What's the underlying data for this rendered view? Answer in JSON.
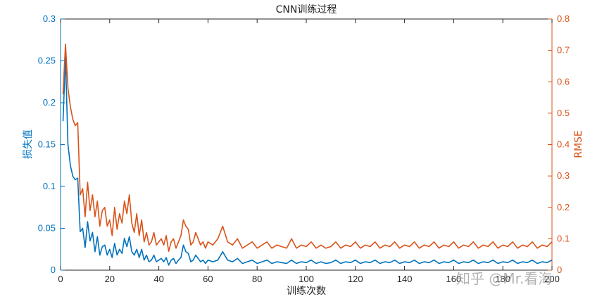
{
  "watermark": "知乎 @Mr.看海",
  "chart_data": {
    "type": "line",
    "title": "CNN训练过程",
    "xlabel": "训练次数",
    "ylabel_left": "损失值",
    "ylabel_right": "RMSE",
    "xlim": [
      0,
      200
    ],
    "ylim_left": [
      0,
      0.3
    ],
    "ylim_right": [
      0,
      0.8
    ],
    "xticks": [
      0,
      20,
      40,
      60,
      80,
      100,
      120,
      140,
      160,
      180,
      200
    ],
    "yticks_left": [
      0,
      0.05,
      0.1,
      0.15,
      0.2,
      0.25,
      0.3
    ],
    "yticks_right": [
      0,
      0.1,
      0.2,
      0.3,
      0.4,
      0.5,
      0.6,
      0.7,
      0.8
    ],
    "grid": false,
    "series": [
      {
        "axis": "left",
        "color": "#0072BD",
        "points": [
          [
            1,
            0.178
          ],
          [
            2,
            0.255
          ],
          [
            3,
            0.15
          ],
          [
            4,
            0.125
          ],
          [
            5,
            0.112
          ],
          [
            6,
            0.108
          ],
          [
            7,
            0.11
          ],
          [
            8,
            0.046
          ],
          [
            9,
            0.05
          ],
          [
            10,
            0.027
          ],
          [
            11,
            0.058
          ],
          [
            12,
            0.035
          ],
          [
            13,
            0.045
          ],
          [
            14,
            0.022
          ],
          [
            15,
            0.04
          ],
          [
            16,
            0.018
          ],
          [
            17,
            0.028
          ],
          [
            18,
            0.03
          ],
          [
            19,
            0.018
          ],
          [
            20,
            0.025
          ],
          [
            21,
            0.015
          ],
          [
            22,
            0.032
          ],
          [
            23,
            0.018
          ],
          [
            24,
            0.025
          ],
          [
            25,
            0.02
          ],
          [
            26,
            0.038
          ],
          [
            27,
            0.028
          ],
          [
            28,
            0.04
          ],
          [
            29,
            0.022
          ],
          [
            30,
            0.018
          ],
          [
            31,
            0.025
          ],
          [
            32,
            0.015
          ],
          [
            33,
            0.025
          ],
          [
            34,
            0.012
          ],
          [
            35,
            0.018
          ],
          [
            36,
            0.01
          ],
          [
            37,
            0.012
          ],
          [
            38,
            0.018
          ],
          [
            39,
            0.01
          ],
          [
            40,
            0.012
          ],
          [
            41,
            0.014
          ],
          [
            42,
            0.01
          ],
          [
            43,
            0.015
          ],
          [
            44,
            0.006
          ],
          [
            45,
            0.012
          ],
          [
            46,
            0.014
          ],
          [
            47,
            0.008
          ],
          [
            48,
            0.012
          ],
          [
            49,
            0.015
          ],
          [
            50,
            0.03
          ],
          [
            51,
            0.022
          ],
          [
            52,
            0.02
          ],
          [
            53,
            0.01
          ],
          [
            54,
            0.012
          ],
          [
            55,
            0.018
          ],
          [
            56,
            0.014
          ],
          [
            57,
            0.01
          ],
          [
            58,
            0.012
          ],
          [
            59,
            0.008
          ],
          [
            60,
            0.012
          ],
          [
            62,
            0.01
          ],
          [
            64,
            0.012
          ],
          [
            66,
            0.022
          ],
          [
            68,
            0.012
          ],
          [
            70,
            0.01
          ],
          [
            72,
            0.014
          ],
          [
            74,
            0.008
          ],
          [
            76,
            0.01
          ],
          [
            78,
            0.012
          ],
          [
            80,
            0.008
          ],
          [
            82,
            0.01
          ],
          [
            84,
            0.012
          ],
          [
            86,
            0.008
          ],
          [
            88,
            0.01
          ],
          [
            90,
            0.009
          ],
          [
            92,
            0.008
          ],
          [
            94,
            0.012
          ],
          [
            96,
            0.008
          ],
          [
            98,
            0.01
          ],
          [
            100,
            0.009
          ],
          [
            102,
            0.012
          ],
          [
            104,
            0.008
          ],
          [
            106,
            0.01
          ],
          [
            108,
            0.008
          ],
          [
            110,
            0.009
          ],
          [
            112,
            0.012
          ],
          [
            114,
            0.008
          ],
          [
            116,
            0.01
          ],
          [
            118,
            0.009
          ],
          [
            120,
            0.012
          ],
          [
            122,
            0.008
          ],
          [
            124,
            0.01
          ],
          [
            126,
            0.009
          ],
          [
            128,
            0.012
          ],
          [
            130,
            0.008
          ],
          [
            132,
            0.01
          ],
          [
            134,
            0.009
          ],
          [
            136,
            0.012
          ],
          [
            138,
            0.008
          ],
          [
            140,
            0.01
          ],
          [
            142,
            0.009
          ],
          [
            144,
            0.012
          ],
          [
            146,
            0.008
          ],
          [
            148,
            0.01
          ],
          [
            150,
            0.009
          ],
          [
            152,
            0.012
          ],
          [
            154,
            0.008
          ],
          [
            156,
            0.01
          ],
          [
            158,
            0.009
          ],
          [
            160,
            0.012
          ],
          [
            162,
            0.008
          ],
          [
            164,
            0.01
          ],
          [
            166,
            0.009
          ],
          [
            168,
            0.012
          ],
          [
            170,
            0.008
          ],
          [
            172,
            0.01
          ],
          [
            174,
            0.009
          ],
          [
            176,
            0.012
          ],
          [
            178,
            0.008
          ],
          [
            180,
            0.01
          ],
          [
            182,
            0.009
          ],
          [
            184,
            0.012
          ],
          [
            186,
            0.008
          ],
          [
            188,
            0.01
          ],
          [
            190,
            0.009
          ],
          [
            192,
            0.012
          ],
          [
            194,
            0.008
          ],
          [
            196,
            0.01
          ],
          [
            198,
            0.009
          ],
          [
            200,
            0.012
          ]
        ]
      },
      {
        "axis": "right",
        "color": "#D95319",
        "points": [
          [
            1,
            0.56
          ],
          [
            2,
            0.72
          ],
          [
            3,
            0.58
          ],
          [
            4,
            0.52
          ],
          [
            5,
            0.48
          ],
          [
            6,
            0.46
          ],
          [
            7,
            0.47
          ],
          [
            8,
            0.24
          ],
          [
            9,
            0.26
          ],
          [
            10,
            0.17
          ],
          [
            11,
            0.28
          ],
          [
            12,
            0.19
          ],
          [
            13,
            0.24
          ],
          [
            14,
            0.17
          ],
          [
            15,
            0.22
          ],
          [
            16,
            0.14
          ],
          [
            17,
            0.19
          ],
          [
            18,
            0.2
          ],
          [
            19,
            0.14
          ],
          [
            20,
            0.16
          ],
          [
            21,
            0.11
          ],
          [
            22,
            0.2
          ],
          [
            23,
            0.13
          ],
          [
            24,
            0.18
          ],
          [
            25,
            0.15
          ],
          [
            26,
            0.22
          ],
          [
            27,
            0.18
          ],
          [
            28,
            0.24
          ],
          [
            29,
            0.15
          ],
          [
            30,
            0.12
          ],
          [
            31,
            0.18
          ],
          [
            32,
            0.11
          ],
          [
            33,
            0.16
          ],
          [
            34,
            0.09
          ],
          [
            35,
            0.12
          ],
          [
            36,
            0.08
          ],
          [
            37,
            0.09
          ],
          [
            38,
            0.12
          ],
          [
            39,
            0.08
          ],
          [
            40,
            0.09
          ],
          [
            41,
            0.1
          ],
          [
            42,
            0.08
          ],
          [
            43,
            0.11
          ],
          [
            44,
            0.06
          ],
          [
            45,
            0.09
          ],
          [
            46,
            0.1
          ],
          [
            47,
            0.07
          ],
          [
            48,
            0.09
          ],
          [
            49,
            0.11
          ],
          [
            50,
            0.16
          ],
          [
            51,
            0.14
          ],
          [
            52,
            0.13
          ],
          [
            53,
            0.08
          ],
          [
            54,
            0.09
          ],
          [
            55,
            0.12
          ],
          [
            56,
            0.1
          ],
          [
            57,
            0.08
          ],
          [
            58,
            0.09
          ],
          [
            59,
            0.07
          ],
          [
            60,
            0.09
          ],
          [
            62,
            0.08
          ],
          [
            64,
            0.1
          ],
          [
            66,
            0.14
          ],
          [
            68,
            0.09
          ],
          [
            70,
            0.08
          ],
          [
            72,
            0.1
          ],
          [
            74,
            0.07
          ],
          [
            76,
            0.08
          ],
          [
            78,
            0.09
          ],
          [
            80,
            0.07
          ],
          [
            82,
            0.08
          ],
          [
            84,
            0.09
          ],
          [
            86,
            0.07
          ],
          [
            88,
            0.08
          ],
          [
            90,
            0.075
          ],
          [
            92,
            0.07
          ],
          [
            94,
            0.1
          ],
          [
            96,
            0.07
          ],
          [
            98,
            0.08
          ],
          [
            100,
            0.075
          ],
          [
            102,
            0.09
          ],
          [
            104,
            0.07
          ],
          [
            106,
            0.08
          ],
          [
            108,
            0.07
          ],
          [
            110,
            0.075
          ],
          [
            112,
            0.09
          ],
          [
            114,
            0.07
          ],
          [
            116,
            0.08
          ],
          [
            118,
            0.075
          ],
          [
            120,
            0.09
          ],
          [
            122,
            0.07
          ],
          [
            124,
            0.08
          ],
          [
            126,
            0.075
          ],
          [
            128,
            0.09
          ],
          [
            130,
            0.07
          ],
          [
            132,
            0.08
          ],
          [
            134,
            0.075
          ],
          [
            136,
            0.09
          ],
          [
            138,
            0.07
          ],
          [
            140,
            0.08
          ],
          [
            142,
            0.075
          ],
          [
            144,
            0.09
          ],
          [
            146,
            0.07
          ],
          [
            148,
            0.08
          ],
          [
            150,
            0.075
          ],
          [
            152,
            0.09
          ],
          [
            154,
            0.07
          ],
          [
            156,
            0.08
          ],
          [
            158,
            0.075
          ],
          [
            160,
            0.09
          ],
          [
            162,
            0.07
          ],
          [
            164,
            0.08
          ],
          [
            166,
            0.075
          ],
          [
            168,
            0.09
          ],
          [
            170,
            0.07
          ],
          [
            172,
            0.08
          ],
          [
            174,
            0.075
          ],
          [
            176,
            0.09
          ],
          [
            178,
            0.07
          ],
          [
            180,
            0.08
          ],
          [
            182,
            0.075
          ],
          [
            184,
            0.09
          ],
          [
            186,
            0.07
          ],
          [
            188,
            0.08
          ],
          [
            190,
            0.075
          ],
          [
            192,
            0.09
          ],
          [
            194,
            0.07
          ],
          [
            196,
            0.08
          ],
          [
            198,
            0.075
          ],
          [
            200,
            0.09
          ]
        ]
      }
    ]
  }
}
